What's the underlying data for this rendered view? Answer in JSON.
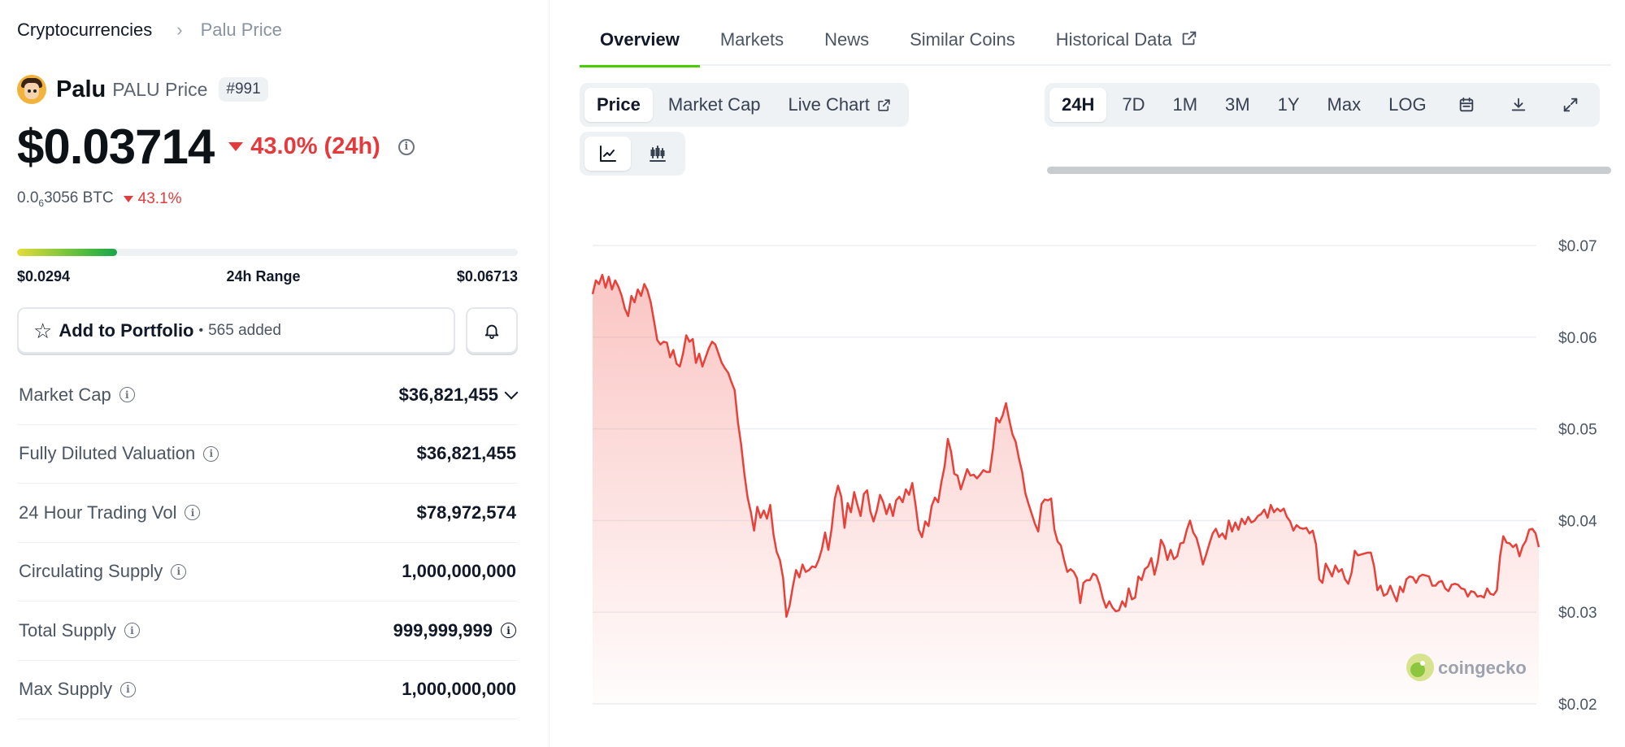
{
  "breadcrumb": {
    "root": "Cryptocurrencies",
    "current": "Palu Price"
  },
  "coin": {
    "name": "Palu",
    "subtitle": "PALU Price",
    "rank": "#991",
    "price": "$0.03714",
    "change_24h": "43.0% (24h)",
    "btc_prefix": "0.0",
    "btc_sub": "6",
    "btc_suffix": "3056 BTC",
    "btc_change": "43.1%",
    "icon": "palu-coin-logo"
  },
  "range": {
    "low": "$0.0294",
    "label": "24h Range",
    "high": "$0.06713",
    "fill_percent": 20
  },
  "portfolio": {
    "label": "Add to Portfolio",
    "separator": "•",
    "count": "565 added"
  },
  "stats": [
    {
      "label": "Market Cap",
      "value": "$36,821,455"
    },
    {
      "label": "Fully Diluted Valuation",
      "value": "$36,821,455"
    },
    {
      "label": "24 Hour Trading Vol",
      "value": "$78,972,574"
    },
    {
      "label": "Circulating Supply",
      "value": "1,000,000,000"
    },
    {
      "label": "Total Supply",
      "value": "999,999,999"
    },
    {
      "label": "Max Supply",
      "value": "1,000,000,000"
    }
  ],
  "tabs": [
    "Overview",
    "Markets",
    "News",
    "Similar Coins",
    "Historical Data"
  ],
  "chart_type_options": [
    "Price",
    "Market Cap",
    "Live Chart"
  ],
  "chart_style_icons": [
    "line-chart-icon",
    "candlestick-icon"
  ],
  "range_options": [
    "24H",
    "7D",
    "1M",
    "3M",
    "1Y",
    "Max",
    "LOG"
  ],
  "range_icons": [
    "calendar-icon",
    "download-icon",
    "expand-icon"
  ],
  "colors": {
    "accent_green": "#4bcc00",
    "negative_red": "#e5393c",
    "line": "#e8413a"
  },
  "watermark": "coingecko",
  "chart_data": {
    "type": "area",
    "title": "",
    "xlabel": "",
    "ylabel": "",
    "ylim": [
      0.02,
      0.07
    ],
    "y_ticks": [
      "$0.07",
      "$0.06",
      "$0.05",
      "$0.04",
      "$0.03",
      "$0.02"
    ],
    "y_tick_values": [
      0.07,
      0.06,
      0.05,
      0.04,
      0.03,
      0.02
    ],
    "grid": true,
    "series": [
      {
        "values": [
          0.0647,
          0.0662,
          0.0658,
          0.0668,
          0.0654,
          0.0666,
          0.0652,
          0.0662,
          0.0655,
          0.0645,
          0.0631,
          0.0623,
          0.0645,
          0.0638,
          0.0652,
          0.0645,
          0.0658,
          0.0651,
          0.0638,
          0.0618,
          0.0597,
          0.0592,
          0.0595,
          0.0594,
          0.0578,
          0.0586,
          0.0571,
          0.0568,
          0.0582,
          0.0602,
          0.0595,
          0.0598,
          0.0572,
          0.0582,
          0.0568,
          0.0578,
          0.0588,
          0.0595,
          0.0592,
          0.0582,
          0.0572,
          0.0566,
          0.0561,
          0.0551,
          0.0542,
          0.0507,
          0.0483,
          0.0451,
          0.0425,
          0.0409,
          0.0389,
          0.0415,
          0.0403,
          0.0411,
          0.0402,
          0.0417,
          0.0385,
          0.0366,
          0.0357,
          0.0337,
          0.0295,
          0.0307,
          0.0328,
          0.0346,
          0.0338,
          0.0352,
          0.0344,
          0.0346,
          0.035,
          0.0349,
          0.0357,
          0.0369,
          0.0387,
          0.0368,
          0.0391,
          0.0424,
          0.0438,
          0.0426,
          0.0392,
          0.0419,
          0.0409,
          0.0431,
          0.0417,
          0.0405,
          0.0429,
          0.0433,
          0.041,
          0.0399,
          0.0411,
          0.0428,
          0.042,
          0.0407,
          0.0418,
          0.0405,
          0.0422,
          0.0426,
          0.042,
          0.0434,
          0.0428,
          0.0441,
          0.0417,
          0.039,
          0.0382,
          0.0399,
          0.0394,
          0.0416,
          0.0425,
          0.042,
          0.0442,
          0.0459,
          0.0489,
          0.0475,
          0.0451,
          0.0449,
          0.0434,
          0.0445,
          0.0456,
          0.0449,
          0.045,
          0.0446,
          0.045,
          0.0455,
          0.0453,
          0.0453,
          0.0479,
          0.0512,
          0.0507,
          0.0515,
          0.0528,
          0.051,
          0.0494,
          0.0486,
          0.0468,
          0.0453,
          0.043,
          0.0418,
          0.0407,
          0.0396,
          0.0388,
          0.0418,
          0.0423,
          0.0422,
          0.0424,
          0.039,
          0.0377,
          0.0373,
          0.0357,
          0.0344,
          0.0347,
          0.0344,
          0.0337,
          0.031,
          0.0332,
          0.0335,
          0.0335,
          0.0342,
          0.034,
          0.033,
          0.0315,
          0.0305,
          0.0312,
          0.0305,
          0.0301,
          0.0302,
          0.0312,
          0.0306,
          0.0326,
          0.0314,
          0.0316,
          0.0339,
          0.0335,
          0.0347,
          0.035,
          0.0359,
          0.0341,
          0.0355,
          0.0379,
          0.0372,
          0.0357,
          0.0368,
          0.0358,
          0.0361,
          0.0375,
          0.0376,
          0.039,
          0.04,
          0.0387,
          0.0381,
          0.0368,
          0.0352,
          0.0363,
          0.0375,
          0.0386,
          0.0391,
          0.0382,
          0.0386,
          0.038,
          0.04,
          0.0388,
          0.0398,
          0.039,
          0.0402,
          0.0396,
          0.0404,
          0.0398,
          0.04,
          0.0405,
          0.0407,
          0.0412,
          0.0403,
          0.0417,
          0.0409,
          0.0413,
          0.041,
          0.0413,
          0.0404,
          0.0399,
          0.0389,
          0.0395,
          0.0392,
          0.0391,
          0.0392,
          0.0386,
          0.0389,
          0.0374,
          0.0336,
          0.0332,
          0.0353,
          0.0346,
          0.0339,
          0.0351,
          0.0344,
          0.0347,
          0.0336,
          0.0331,
          0.0343,
          0.0367,
          0.0362,
          0.0363,
          0.0364,
          0.0365,
          0.0365,
          0.035,
          0.0324,
          0.0329,
          0.0318,
          0.032,
          0.0329,
          0.032,
          0.0312,
          0.0328,
          0.0322,
          0.0336,
          0.0339,
          0.0338,
          0.0332,
          0.0339,
          0.0341,
          0.034,
          0.0339,
          0.0329,
          0.0329,
          0.0333,
          0.0334,
          0.0326,
          0.0323,
          0.033,
          0.0331,
          0.033,
          0.0326,
          0.0325,
          0.0317,
          0.0323,
          0.0322,
          0.0317,
          0.0318,
          0.0316,
          0.0326,
          0.032,
          0.0319,
          0.0324,
          0.0361,
          0.0383,
          0.0376,
          0.0375,
          0.0371,
          0.0374,
          0.0361,
          0.0372,
          0.0378,
          0.039,
          0.0391,
          0.0386,
          0.0371
        ]
      }
    ]
  }
}
